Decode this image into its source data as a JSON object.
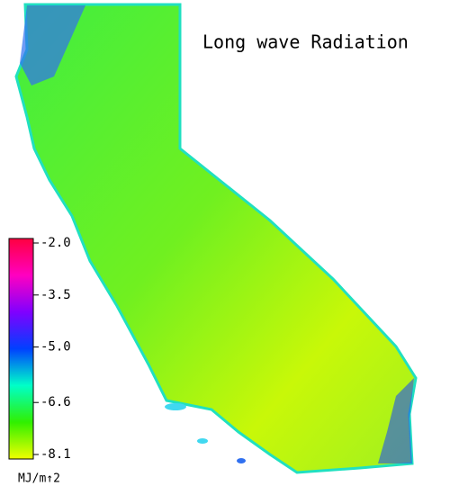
{
  "title": "Long wave Radiation",
  "colorbar": {
    "lim": [
      -8.1,
      -2.0
    ],
    "ticks": [
      {
        "value": -2.0,
        "label": "-2.0"
      },
      -3.5,
      {
        "value": -5.0,
        "label": "-5.0"
      },
      -6.6,
      -8.1
    ],
    "unit": "MJ/m↑2",
    "colors": [
      "#f0ff00",
      "#30f000",
      "#00ffc8",
      "#0040ff",
      "#8000ff",
      "#ff00c0",
      "#ff0040"
    ]
  }
}
